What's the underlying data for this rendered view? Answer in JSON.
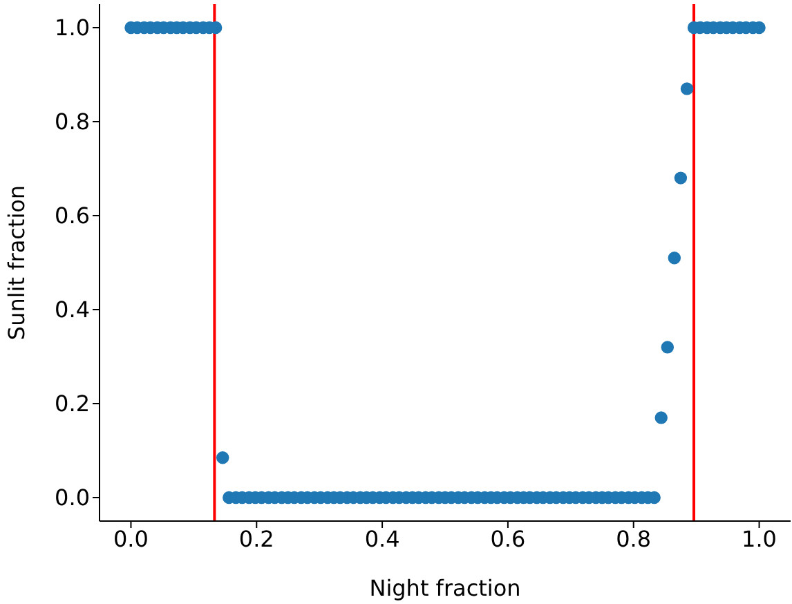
{
  "chart_data": {
    "type": "scatter",
    "xlabel": "Night fraction",
    "ylabel": "Sunlit fraction",
    "xlim": [
      -0.05,
      1.05
    ],
    "ylim": [
      -0.05,
      1.05
    ],
    "xticks": [
      {
        "value": 0,
        "label": "0.0"
      },
      {
        "value": 0.2,
        "label": "0.2"
      },
      {
        "value": 0.4,
        "label": "0.4"
      },
      {
        "value": 0.6,
        "label": "0.6"
      },
      {
        "value": 0.8,
        "label": "0.8"
      },
      {
        "value": 1,
        "label": "1.0"
      }
    ],
    "yticks": [
      {
        "value": 0,
        "label": "0.0"
      },
      {
        "value": 0.2,
        "label": "0.2"
      },
      {
        "value": 0.4,
        "label": "0.4"
      },
      {
        "value": 0.6,
        "label": "0.6"
      },
      {
        "value": 0.8,
        "label": "0.8"
      },
      {
        "value": 1,
        "label": "1.0"
      }
    ],
    "grid": false,
    "legend": false,
    "marker": "circle",
    "series": [
      {
        "color": "#1f77b4",
        "x": [
          0,
          0.01,
          0.021,
          0.031,
          0.042,
          0.052,
          0.063,
          0.073,
          0.083,
          0.094,
          0.104,
          0.115,
          0.125,
          0.135,
          0.146,
          0.156,
          0.167,
          0.177,
          0.188,
          0.198,
          0.208,
          0.219,
          0.229,
          0.24,
          0.25,
          0.26,
          0.271,
          0.281,
          0.292,
          0.302,
          0.313,
          0.323,
          0.333,
          0.344,
          0.354,
          0.365,
          0.375,
          0.385,
          0.396,
          0.406,
          0.417,
          0.427,
          0.438,
          0.448,
          0.458,
          0.469,
          0.479,
          0.49,
          0.5,
          0.51,
          0.521,
          0.531,
          0.542,
          0.552,
          0.563,
          0.573,
          0.583,
          0.594,
          0.604,
          0.615,
          0.625,
          0.635,
          0.646,
          0.656,
          0.667,
          0.677,
          0.688,
          0.698,
          0.708,
          0.719,
          0.729,
          0.74,
          0.75,
          0.76,
          0.771,
          0.781,
          0.792,
          0.802,
          0.813,
          0.823,
          0.833,
          0.844,
          0.854,
          0.865,
          0.875,
          0.885,
          0.896,
          0.906,
          0.917,
          0.927,
          0.938,
          0.948,
          0.958,
          0.969,
          0.979,
          0.99,
          1
        ],
        "values": [
          1,
          1,
          1,
          1,
          1,
          1,
          1,
          1,
          1,
          1,
          1,
          1,
          1,
          1,
          0.085,
          0,
          0,
          0,
          0,
          0,
          0,
          0,
          0,
          0,
          0,
          0,
          0,
          0,
          0,
          0,
          0,
          0,
          0,
          0,
          0,
          0,
          0,
          0,
          0,
          0,
          0,
          0,
          0,
          0,
          0,
          0,
          0,
          0,
          0,
          0,
          0,
          0,
          0,
          0,
          0,
          0,
          0,
          0,
          0,
          0,
          0,
          0,
          0,
          0,
          0,
          0,
          0,
          0,
          0,
          0,
          0,
          0,
          0,
          0,
          0,
          0,
          0,
          0,
          0,
          0,
          0,
          0.17,
          0.32,
          0.51,
          0.68,
          0.87,
          1,
          1,
          1,
          1,
          1,
          1,
          1,
          1,
          1,
          1,
          1
        ]
      }
    ],
    "ref_lines": [
      {
        "axis": "x",
        "value": 0.133,
        "color": "#ff0000"
      },
      {
        "axis": "x",
        "value": 0.896,
        "color": "#ff0000"
      }
    ]
  }
}
